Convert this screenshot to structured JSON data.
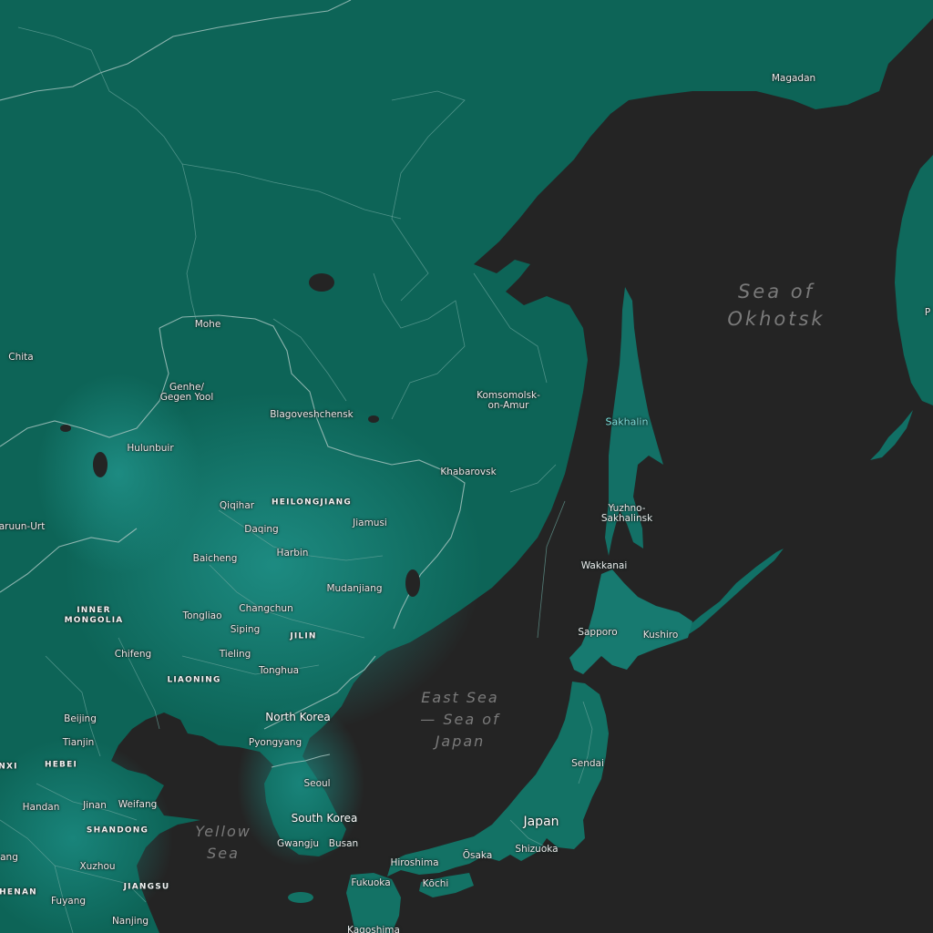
{
  "map": {
    "colors": {
      "water": "#242424",
      "land_dark": "#0c5e52",
      "land_mid": "#0f6e62",
      "land_light": "#1c8a82",
      "border": "#8fb3ad",
      "border_province": "#5f9990",
      "island_label": "#7fe3e0",
      "sea_label": "#7a7a7a"
    },
    "seas": {
      "okhotsk": "Sea of\nOkhotsk",
      "east_sea": "East Sea\n— Sea of\nJapan",
      "yellow_sea": "Yellow\nSea"
    },
    "countries": {
      "north_korea": "North Korea",
      "south_korea": "South Korea",
      "japan": "Japan"
    },
    "provinces": {
      "heilongjiang": "HEILONGJIANG",
      "inner_mongolia": "INNER\nMONGOLIA",
      "jilin": "JILIN",
      "liaoning": "LIAONING",
      "hebei": "HEBEI",
      "shandong": "SHANDONG",
      "jiangsu": "JIANGSU",
      "henan": "HENAN",
      "shanxi": "NXI"
    },
    "islands": {
      "sakhalin": "Sakhalin"
    },
    "cities": {
      "magadan": "Magadan",
      "mohe": "Mohe",
      "chita": "Chita",
      "genhe": "Genhe/\nGegen Yool",
      "blagoveshchensk": "Blagoveshchensk",
      "komsomolsk": "Komsomolsk-\non-Amur",
      "hulunbuir": "Hulunbuir",
      "khabarovsk": "Khabarovsk",
      "qiqihar": "Qiqihar",
      "daqing": "Daqing",
      "jiamusi": "Jiamusi",
      "choibalsan": "aruun-Urt",
      "baicheng": "Baicheng",
      "harbin": "Harbin",
      "yuzhno": "Yuzhno-\nSakhalinsk",
      "wakkanai": "Wakkanai",
      "mudanjiang": "Mudanjiang",
      "changchun": "Changchun",
      "tongliao": "Tongliao",
      "siping": "Siping",
      "sapporo": "Sapporo",
      "kushiro": "Kushiro",
      "chifeng": "Chifeng",
      "tieling": "Tieling",
      "tonghua": "Tonghua",
      "beijing": "Beijing",
      "tianjin": "Tianjin",
      "pyongyang": "Pyongyang",
      "seoul": "Seoul",
      "sendai": "Sendai",
      "handan": "Handan",
      "jinan": "Jinan",
      "weifang": "Weifang",
      "gwangju": "Gwangju",
      "busan": "Busan",
      "shizuoka": "Shizuoka",
      "hiroshima": "Hiroshima",
      "osaka": "Ōsaka",
      "xuzhou": "Xuzhou",
      "fukuoka": "Fukuoka",
      "kochi": "Kōchi",
      "fuyang": "Fuyang",
      "nanjing": "Nanjing",
      "kagoshima": "Kagoshima",
      "taiyuan": "ang",
      "poronaysk": "P"
    }
  }
}
